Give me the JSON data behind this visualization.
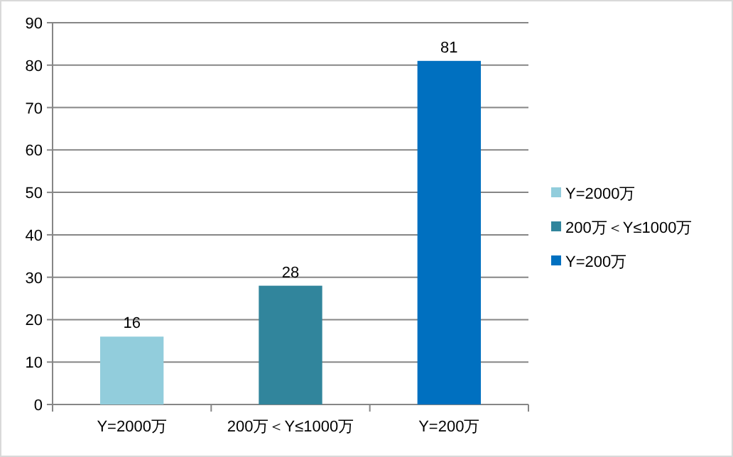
{
  "chart_data": {
    "type": "bar",
    "categories": [
      "Y=2000万",
      "200万＜Y≤1000万",
      "Y=200万"
    ],
    "series": [
      {
        "name": "Y=2000万",
        "color": "#92cddc",
        "values": [
          16,
          null,
          null
        ]
      },
      {
        "name": "200万＜Y≤1000万",
        "color": "#31859c",
        "values": [
          null,
          28,
          null
        ]
      },
      {
        "name": "Y=200万",
        "color": "#0070c0",
        "values": [
          null,
          null,
          81
        ]
      }
    ],
    "stacked": true,
    "ylim": [
      0,
      90
    ],
    "yticks": [
      0,
      10,
      20,
      30,
      40,
      50,
      60,
      70,
      80,
      90
    ],
    "grid": "y",
    "data_labels": true,
    "legend": "right"
  }
}
